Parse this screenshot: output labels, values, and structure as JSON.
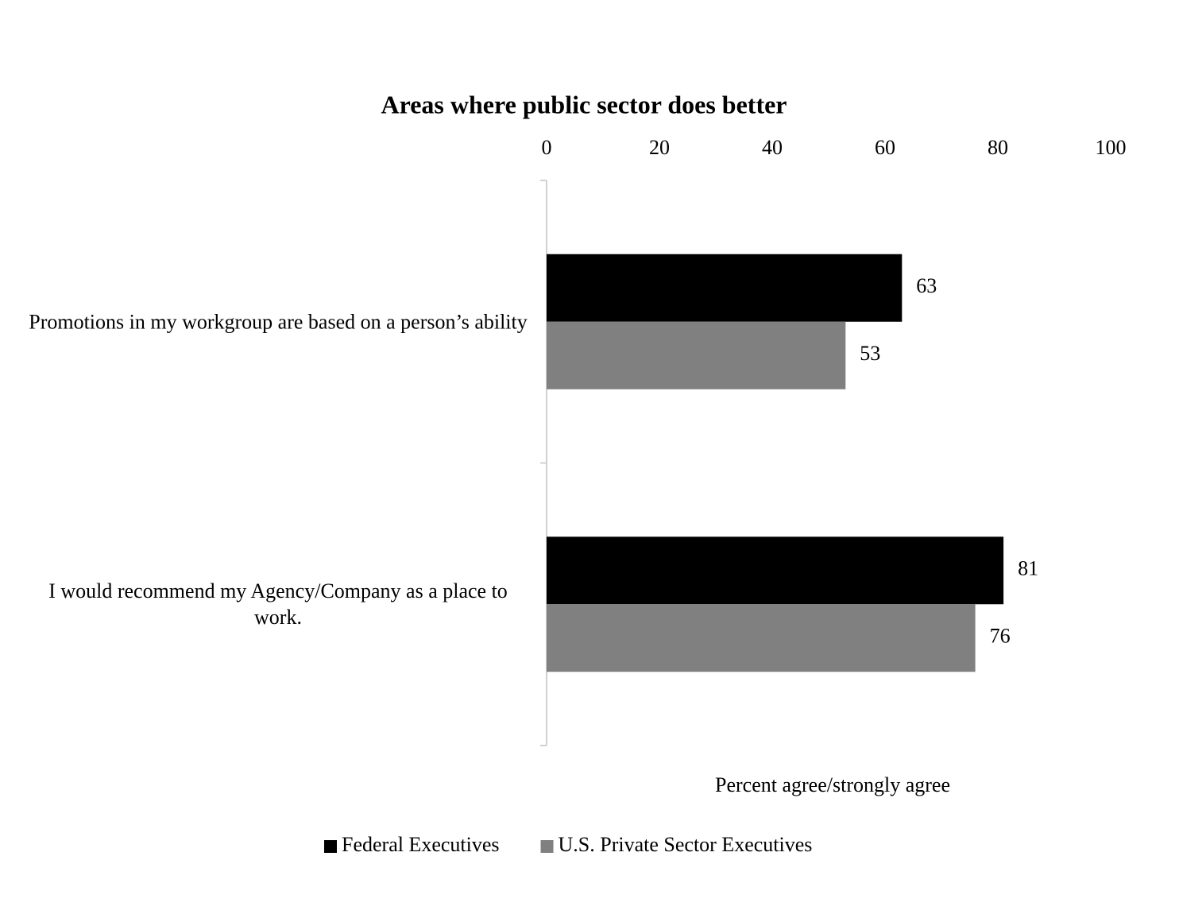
{
  "chart_data": {
    "type": "hbar",
    "title": "Areas where public sector does better",
    "categories": [
      "Promotions in my workgroup are based on a person’s ability",
      "I would recommend my Agency/Company as a place to work."
    ],
    "series": [
      {
        "name": "Federal Executives",
        "color": "#000000",
        "values": [
          63,
          81
        ]
      },
      {
        "name": "U.S. Private Sector Executives",
        "color": "#808080",
        "values": [
          53,
          76
        ]
      }
    ],
    "x_label": "Percent agree/strongly agree",
    "xlim": [
      0,
      100
    ],
    "xticks": [
      0,
      20,
      40,
      60,
      80,
      100
    ],
    "grid": false,
    "legend": "bottom"
  }
}
